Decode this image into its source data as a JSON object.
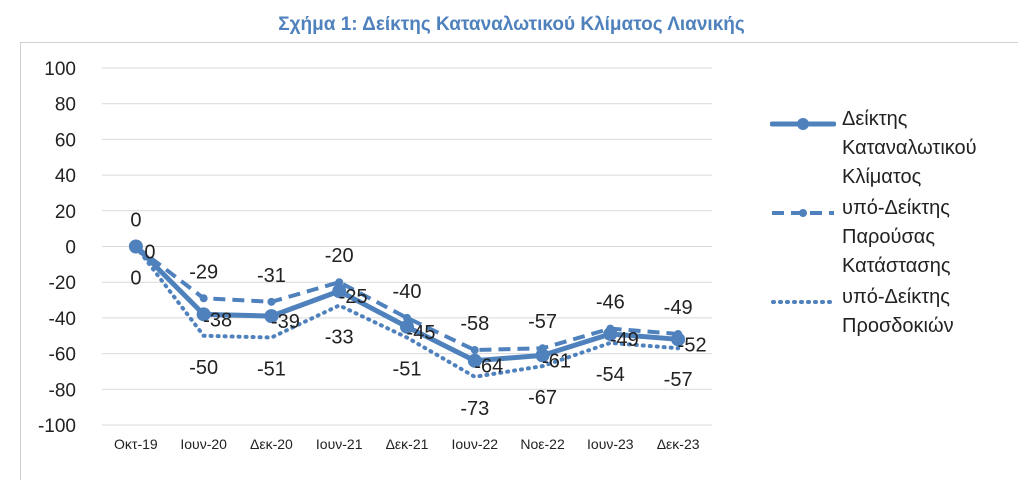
{
  "chart_data": {
    "type": "line",
    "title": "Σχήμα 1: Δείκτης Καταναλωτικού Κλίματος Λιανικής",
    "categories": [
      "Οκτ-19",
      "Ιουν-20",
      "Δεκ-20",
      "Ιουν-21",
      "Δεκ-21",
      "Ιουν-22",
      "Νοε-22",
      "Ιουν-23",
      "Δεκ-23"
    ],
    "ylim": [
      -100,
      100
    ],
    "yticks": [
      "100",
      "80",
      "60",
      "40",
      "20",
      "0",
      "-20",
      "-40",
      "-60",
      "-80",
      "-100"
    ],
    "grid": true,
    "legend_position": "right",
    "series": [
      {
        "name": "Δείκτης Καταναλωτικού Κλίματος",
        "style": "solid-marker",
        "color": "#4F81BD",
        "values": [
          0,
          -38,
          -39,
          -25,
          -45,
          -64,
          -61,
          -49,
          -52
        ],
        "labels": [
          "0",
          "-38",
          "-39",
          "-25",
          "-45",
          "-64",
          "-61",
          "-49",
          "-52"
        ]
      },
      {
        "name": "υπό-Δείκτης Παρούσας Κατάστασης",
        "style": "dashed",
        "color": "#4F81BD",
        "values": [
          0,
          -29,
          -31,
          -20,
          -40,
          -58,
          -57,
          -46,
          -49
        ],
        "labels": [
          "0",
          "-29",
          "-31",
          "-20",
          "-40",
          "-58",
          "-57",
          "-46",
          "-49"
        ]
      },
      {
        "name": "υπό-Δείκτης Προσδοκιών",
        "style": "dotted",
        "color": "#4F81BD",
        "values": [
          0,
          -50,
          -51,
          -33,
          -51,
          -73,
          -67,
          -54,
          -57
        ],
        "labels": [
          "0",
          "-50",
          "-51",
          "-33",
          "-51",
          "-73",
          "-67",
          "-54",
          "-57"
        ]
      }
    ]
  },
  "legend": {
    "main_lines": [
      "Δείκτης",
      "Καταναλωτικού",
      "Κλίματος"
    ],
    "current_lines": [
      "υπό-Δείκτης",
      "Παρούσας",
      "Κατάστασης"
    ],
    "expect_lines": [
      "υπό-Δείκτης",
      "Προσδοκιών"
    ]
  }
}
